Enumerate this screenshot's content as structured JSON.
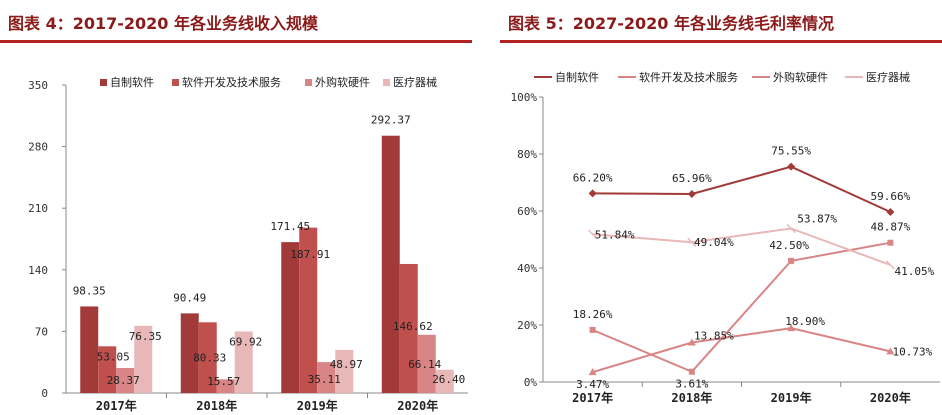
{
  "colors": {
    "title": "#8b1a1a",
    "rule": "#b22222",
    "s1": "#a33a3a",
    "s2": "#c0504d",
    "s3": "#d98585",
    "s4": "#e8b7b7"
  },
  "chart_data": [
    {
      "type": "bar",
      "title": "图表 4：2017-2020 年各业务线收入规模",
      "categories": [
        "2017年",
        "2018年",
        "2019年",
        "2020年"
      ],
      "ylim": [
        0,
        350
      ],
      "yticks": [
        "0",
        "70",
        "140",
        "210",
        "280",
        "350"
      ],
      "ytick_values": [
        0,
        70,
        140,
        210,
        280,
        350
      ],
      "legend_position": "top",
      "grid": false,
      "series": [
        {
          "name": "自制软件",
          "values": [
            98.35,
            90.49,
            171.45,
            292.37
          ],
          "labels": [
            "98.35",
            "90.49",
            "171.45",
            "292.37"
          ]
        },
        {
          "name": "软件开发及技术服务",
          "values": [
            53.05,
            80.33,
            187.91,
            146.62
          ],
          "labels": [
            "53.05",
            "80.33",
            "187.91",
            "146.62"
          ]
        },
        {
          "name": "外购软硬件",
          "values": [
            28.37,
            15.57,
            35.11,
            66.14
          ],
          "labels": [
            "28.37",
            "15.57",
            "35.11",
            "66.14"
          ]
        },
        {
          "name": "医疗器械",
          "values": [
            76.35,
            69.92,
            48.97,
            26.4
          ],
          "labels": [
            "76.35",
            "69.92",
            "48.97",
            "26.40"
          ]
        }
      ]
    },
    {
      "type": "line",
      "title": "图表 5：2027-2020 年各业务线毛利率情况",
      "categories": [
        "2017年",
        "2018年",
        "2019年",
        "2020年"
      ],
      "ylim": [
        0,
        100
      ],
      "yticks": [
        "0%",
        "20%",
        "40%",
        "60%",
        "80%",
        "100%"
      ],
      "ytick_values": [
        0,
        20,
        40,
        60,
        80,
        100
      ],
      "legend_position": "top",
      "grid": false,
      "series": [
        {
          "name": "自制软件",
          "values": [
            66.2,
            65.96,
            75.55,
            59.66
          ],
          "labels": [
            "66.20%",
            "65.96%",
            "75.55%",
            "59.66%"
          ]
        },
        {
          "name": "软件开发及技术服务",
          "values": [
            18.26,
            3.61,
            42.5,
            48.87
          ],
          "labels": [
            "18.26%",
            "3.61%",
            "42.50%",
            "48.87%"
          ]
        },
        {
          "name": "外购软硬件",
          "values": [
            3.47,
            13.85,
            18.9,
            10.73
          ],
          "labels": [
            "3.47%",
            "13.85%",
            "18.90%",
            "10.73%"
          ]
        },
        {
          "name": "医疗器械",
          "values": [
            51.84,
            49.04,
            53.87,
            41.05
          ],
          "labels": [
            "51.84%",
            "49.04%",
            "53.87%",
            "41.05%"
          ]
        }
      ]
    }
  ]
}
